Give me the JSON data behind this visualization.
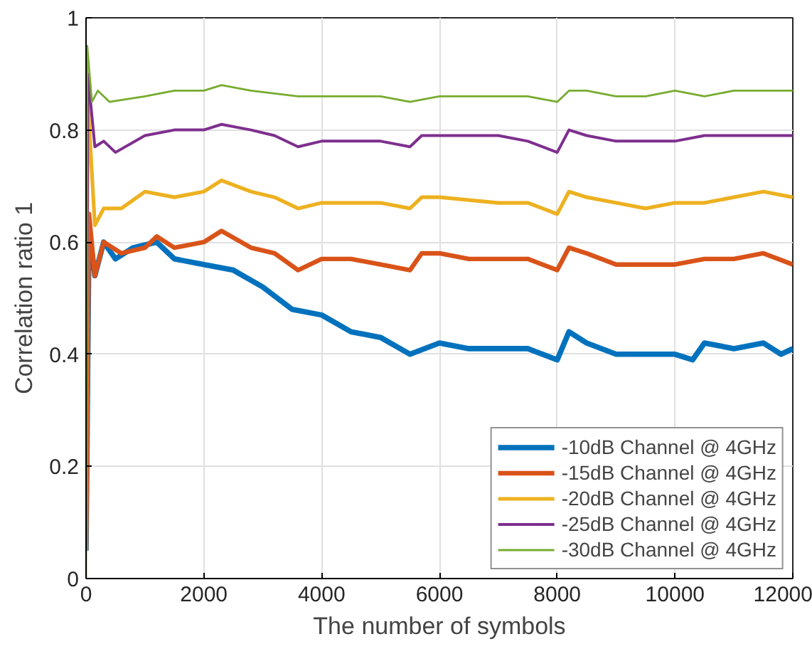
{
  "chart_data": {
    "type": "line",
    "xlabel": "The number of symbols",
    "ylabel": "Correlation ratio 1",
    "xlim": [
      0,
      12000
    ],
    "ylim": [
      0,
      1
    ],
    "xticks": [
      0,
      2000,
      4000,
      6000,
      8000,
      10000,
      12000
    ],
    "yticks": [
      0,
      0.2,
      0.4,
      0.6,
      0.8,
      1
    ],
    "grid": true,
    "legend": "bottom right",
    "marker": "none",
    "line_style": "solid",
    "series": [
      {
        "name": "-10dB Channel @ 4GHz",
        "color": "#0072bd",
        "x": [
          0,
          50,
          150,
          300,
          500,
          800,
          1200,
          1500,
          2000,
          2500,
          3000,
          3500,
          4000,
          4500,
          5000,
          5500,
          6000,
          6500,
          7000,
          7500,
          8000,
          8200,
          8500,
          9000,
          9500,
          10000,
          10300,
          10500,
          11000,
          11500,
          11800,
          12000
        ],
        "values": [
          0.05,
          0.62,
          0.54,
          0.6,
          0.57,
          0.59,
          0.6,
          0.57,
          0.56,
          0.55,
          0.52,
          0.48,
          0.47,
          0.44,
          0.43,
          0.4,
          0.42,
          0.41,
          0.41,
          0.41,
          0.39,
          0.44,
          0.42,
          0.4,
          0.4,
          0.4,
          0.39,
          0.42,
          0.41,
          0.42,
          0.4,
          0.41
        ]
      },
      {
        "name": "-15dB Channel @ 4GHz",
        "color": "#d95319",
        "x": [
          0,
          50,
          150,
          300,
          600,
          1000,
          1200,
          1500,
          2000,
          2300,
          2800,
          3200,
          3600,
          4000,
          4500,
          5000,
          5500,
          5700,
          6000,
          6500,
          7000,
          7500,
          8000,
          8200,
          8500,
          9000,
          9500,
          10000,
          10500,
          11000,
          11500,
          12000
        ],
        "values": [
          0.05,
          0.65,
          0.54,
          0.6,
          0.58,
          0.59,
          0.61,
          0.59,
          0.6,
          0.62,
          0.59,
          0.58,
          0.55,
          0.57,
          0.57,
          0.56,
          0.55,
          0.58,
          0.58,
          0.57,
          0.57,
          0.57,
          0.55,
          0.59,
          0.58,
          0.56,
          0.56,
          0.56,
          0.57,
          0.57,
          0.58,
          0.56
        ]
      },
      {
        "name": "-20dB Channel @ 4GHz",
        "color": "#edb120",
        "x": [
          0,
          30,
          150,
          300,
          600,
          1000,
          1500,
          2000,
          2300,
          2800,
          3200,
          3600,
          4000,
          5000,
          5500,
          5700,
          6000,
          7000,
          7500,
          8000,
          8200,
          8500,
          9000,
          9500,
          10000,
          10500,
          11000,
          11500,
          12000
        ],
        "values": [
          0.05,
          0.85,
          0.63,
          0.66,
          0.66,
          0.69,
          0.68,
          0.69,
          0.71,
          0.69,
          0.68,
          0.66,
          0.67,
          0.67,
          0.66,
          0.68,
          0.68,
          0.67,
          0.67,
          0.65,
          0.69,
          0.68,
          0.67,
          0.66,
          0.67,
          0.67,
          0.68,
          0.69,
          0.68
        ]
      },
      {
        "name": "-25dB Channel @ 4GHz",
        "color": "#7e2f8e",
        "x": [
          0,
          30,
          150,
          300,
          500,
          1000,
          1500,
          2000,
          2300,
          2800,
          3200,
          3600,
          4000,
          5000,
          5500,
          5700,
          6000,
          7000,
          7500,
          8000,
          8200,
          8500,
          9000,
          9500,
          10000,
          10500,
          11000,
          11500,
          12000
        ],
        "values": [
          0.05,
          0.9,
          0.77,
          0.78,
          0.76,
          0.79,
          0.8,
          0.8,
          0.81,
          0.8,
          0.79,
          0.77,
          0.78,
          0.78,
          0.77,
          0.79,
          0.79,
          0.79,
          0.78,
          0.76,
          0.8,
          0.79,
          0.78,
          0.78,
          0.78,
          0.79,
          0.79,
          0.79,
          0.79
        ]
      },
      {
        "name": "-30dB Channel @ 4GHz",
        "color": "#77ac30",
        "x": [
          0,
          20,
          100,
          200,
          400,
          1000,
          1500,
          2000,
          2300,
          2800,
          3600,
          4000,
          5000,
          5500,
          6000,
          7000,
          7500,
          8000,
          8200,
          8500,
          9000,
          9500,
          10000,
          10500,
          11000,
          12000
        ],
        "values": [
          0.0,
          0.95,
          0.85,
          0.87,
          0.85,
          0.86,
          0.87,
          0.87,
          0.88,
          0.87,
          0.86,
          0.86,
          0.86,
          0.85,
          0.86,
          0.86,
          0.86,
          0.85,
          0.87,
          0.87,
          0.86,
          0.86,
          0.87,
          0.86,
          0.87,
          0.87
        ]
      }
    ]
  }
}
